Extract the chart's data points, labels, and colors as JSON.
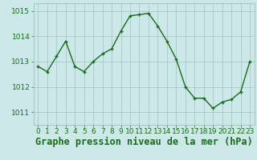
{
  "x": [
    0,
    1,
    2,
    3,
    4,
    5,
    6,
    7,
    8,
    9,
    10,
    11,
    12,
    13,
    14,
    15,
    16,
    17,
    18,
    19,
    20,
    21,
    22,
    23
  ],
  "y": [
    1012.8,
    1012.6,
    1013.2,
    1013.8,
    1012.8,
    1012.6,
    1013.0,
    1013.3,
    1013.5,
    1014.2,
    1014.8,
    1014.85,
    1014.9,
    1014.4,
    1013.8,
    1013.1,
    1012.0,
    1011.55,
    1011.55,
    1011.15,
    1011.4,
    1011.5,
    1011.8,
    1013.0
  ],
  "line_color": "#1a6b1a",
  "marker": "+",
  "bg_color": "#cce8e8",
  "grid_color": "#a8c8c8",
  "xlabel": "Graphe pression niveau de la mer (hPa)",
  "ylim": [
    1010.5,
    1015.3
  ],
  "yticks": [
    1011,
    1012,
    1013,
    1014,
    1015
  ],
  "xticks": [
    0,
    1,
    2,
    3,
    4,
    5,
    6,
    7,
    8,
    9,
    10,
    11,
    12,
    13,
    14,
    15,
    16,
    17,
    18,
    19,
    20,
    21,
    22,
    23
  ],
  "tick_fontsize": 6.5,
  "label_fontsize": 8.5
}
